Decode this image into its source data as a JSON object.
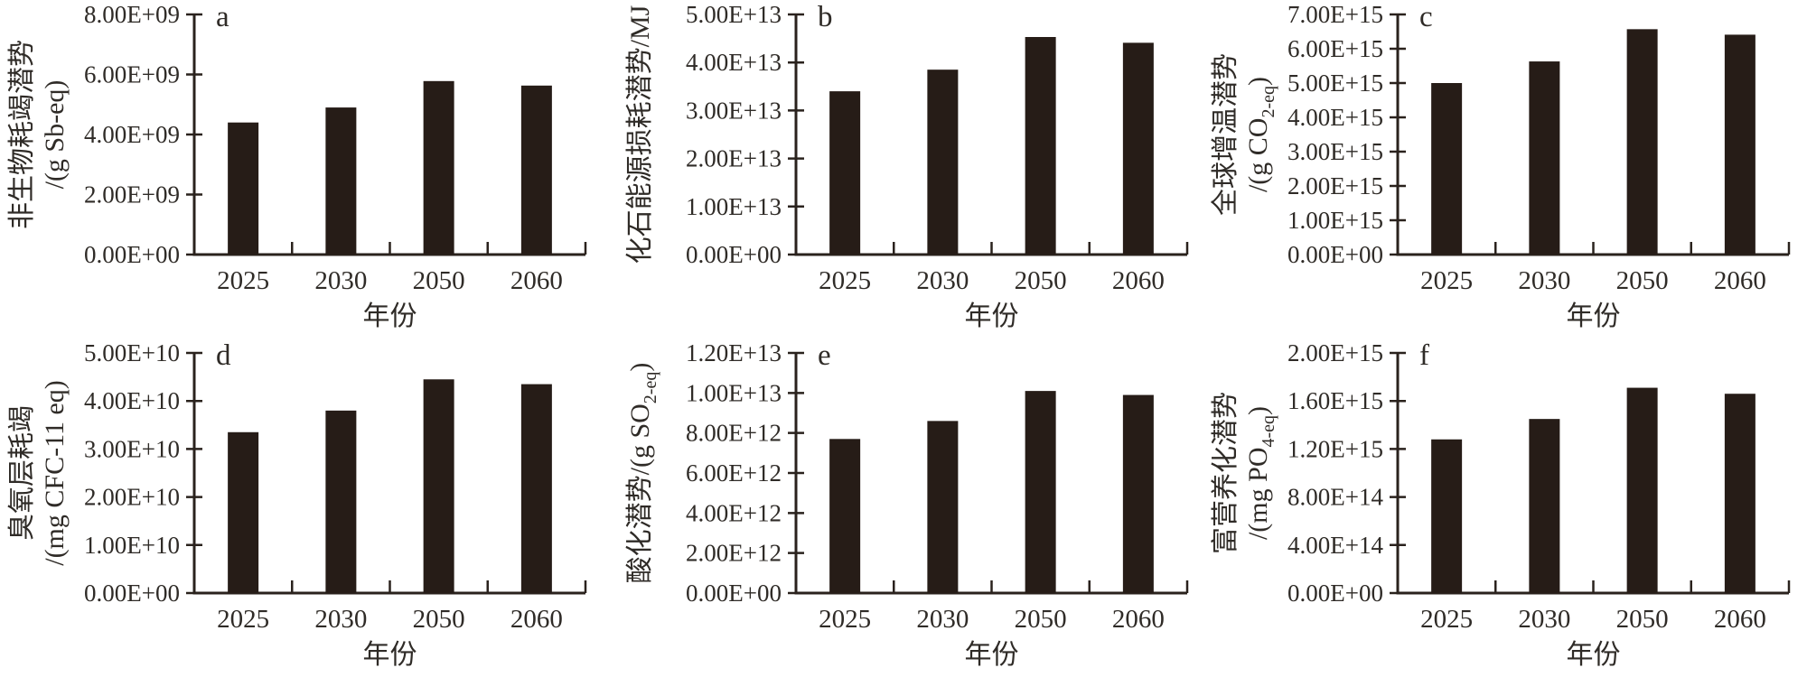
{
  "figure": {
    "background": "#ffffff",
    "bar_color": "#261c17",
    "axis_color": "#2a221d",
    "text_color": "#2f2b27",
    "xlabel": "年份",
    "categories": [
      "2025",
      "2030",
      "2050",
      "2060"
    ]
  },
  "chart_data": [
    {
      "type": "bar",
      "panel_label": "a",
      "categories": [
        "2025",
        "2030",
        "2050",
        "2060"
      ],
      "values": [
        4400000000.0,
        4900000000.0,
        5780000000.0,
        5630000000.0
      ],
      "xlabel": "年份",
      "ylabel_lines": [
        [
          {
            "t": "非生物耗竭潜势"
          }
        ],
        [
          {
            "t": "/(g Sb-eq)"
          }
        ]
      ],
      "ylim": [
        0,
        8000000000.0
      ],
      "ytick_labels": [
        "0.00E+00",
        "2.00E+09",
        "4.00E+09",
        "6.00E+09",
        "8.00E+09"
      ],
      "grid": false,
      "legend": "none"
    },
    {
      "type": "bar",
      "panel_label": "b",
      "categories": [
        "2025",
        "2030",
        "2050",
        "2060"
      ],
      "values": [
        34000000000000.0,
        38500000000000.0,
        45300000000000.0,
        44100000000000.0
      ],
      "xlabel": "年份",
      "ylabel_lines": [
        [
          {
            "t": "化石能源损耗潜势/MJ"
          }
        ]
      ],
      "ylim": [
        0,
        50000000000000.0
      ],
      "ytick_labels": [
        "0.00E+00",
        "1.00E+13",
        "2.00E+13",
        "3.00E+13",
        "4.00E+13",
        "5.00E+13"
      ],
      "grid": false,
      "legend": "none"
    },
    {
      "type": "bar",
      "panel_label": "c",
      "categories": [
        "2025",
        "2030",
        "2050",
        "2060"
      ],
      "values": [
        5000000000000000.0,
        5630000000000000.0,
        6570000000000000.0,
        6410000000000000.0
      ],
      "xlabel": "年份",
      "ylabel_lines": [
        [
          {
            "t": "全球增温潜势"
          }
        ],
        [
          {
            "t": "/(g CO"
          },
          {
            "t": "2-eq",
            "sub": true
          },
          {
            "t": ")"
          }
        ]
      ],
      "ylim": [
        0,
        7000000000000000.0
      ],
      "ytick_labels": [
        "0.00E+00",
        "1.00E+15",
        "2.00E+15",
        "3.00E+15",
        "4.00E+15",
        "5.00E+15",
        "6.00E+15",
        "7.00E+15"
      ],
      "grid": false,
      "legend": "none"
    },
    {
      "type": "bar",
      "panel_label": "d",
      "categories": [
        "2025",
        "2030",
        "2050",
        "2060"
      ],
      "values": [
        33500000000.0,
        38000000000.0,
        44500000000.0,
        43500000000.0
      ],
      "xlabel": "年份",
      "ylabel_lines": [
        [
          {
            "t": "臭氧层耗竭"
          }
        ],
        [
          {
            "t": "/(mg CFC-11 eq)"
          }
        ]
      ],
      "ylim": [
        0,
        50000000000.0
      ],
      "ytick_labels": [
        "0.00E+00",
        "1.00E+10",
        "2.00E+10",
        "3.00E+10",
        "4.00E+10",
        "5.00E+10"
      ],
      "grid": false,
      "legend": "none"
    },
    {
      "type": "bar",
      "panel_label": "e",
      "categories": [
        "2025",
        "2030",
        "2050",
        "2060"
      ],
      "values": [
        7700000000000.0,
        8600000000000.0,
        10100000000000.0,
        9900000000000.0
      ],
      "xlabel": "年份",
      "ylabel_lines": [
        [
          {
            "t": "酸化潜势/(g SO"
          },
          {
            "t": "2-eq",
            "sub": true
          },
          {
            "t": ")"
          }
        ]
      ],
      "ylim": [
        0,
        12000000000000.0
      ],
      "ytick_labels": [
        "0.00E+00",
        "2.00E+12",
        "4.00E+12",
        "6.00E+12",
        "8.00E+12",
        "1.00E+13",
        "1.20E+13"
      ],
      "grid": false,
      "legend": "none"
    },
    {
      "type": "bar",
      "panel_label": "f",
      "categories": [
        "2025",
        "2030",
        "2050",
        "2060"
      ],
      "values": [
        1280000000000000.0,
        1450000000000000.0,
        1710000000000000.0,
        1660000000000000.0
      ],
      "xlabel": "年份",
      "ylabel_lines": [
        [
          {
            "t": "富营养化潜势"
          }
        ],
        [
          {
            "t": "/(mg PO"
          },
          {
            "t": "4-eq",
            "sub": true
          },
          {
            "t": ")"
          }
        ]
      ],
      "ylim": [
        0,
        2000000000000000.0
      ],
      "ytick_labels": [
        "0.00E+00",
        "4.00E+14",
        "8.00E+14",
        "1.20E+15",
        "1.60E+15",
        "2.00E+15"
      ],
      "grid": false,
      "legend": "none"
    }
  ]
}
